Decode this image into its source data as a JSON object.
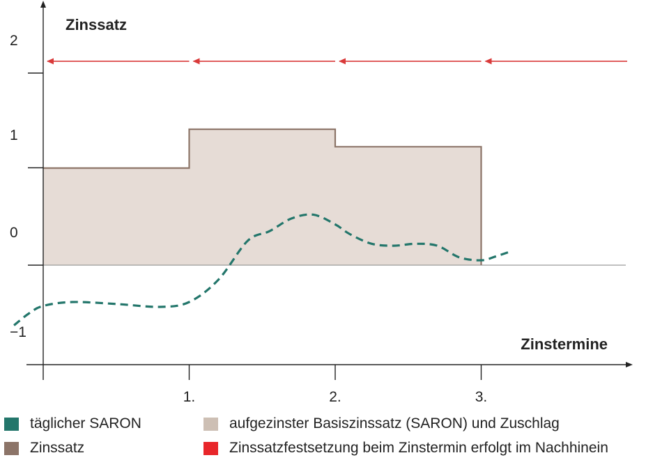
{
  "chart_data": {
    "type": "line",
    "title": "Zinssatz",
    "xlabel": "Zinstermine",
    "ylabel": "Zinssatz",
    "y_ticks": [
      "2",
      "1",
      "0",
      "−1"
    ],
    "y_tick_values": [
      2,
      1,
      0,
      -1
    ],
    "ylim": [
      -1.03,
      2.55
    ],
    "x_ticks": [
      "1.",
      "2.",
      "3."
    ],
    "x_tick_values": [
      1,
      2,
      3
    ],
    "xlim": [
      -0.3,
      4.0
    ],
    "grid": false,
    "legend_position": "bottom",
    "colors": {
      "saron": "#23766b",
      "zinssatz": "#8c7468",
      "area": "#e6dcd6",
      "arrows": "#d93a3a",
      "axis": "#222222"
    },
    "series": [
      {
        "name": "Zinssatz",
        "kind": "step",
        "segments": [
          {
            "x0": 0,
            "x1": 1,
            "y": 1.0
          },
          {
            "x0": 1,
            "x1": 2,
            "y": 1.4
          },
          {
            "x0": 2,
            "x1": 3,
            "y": 1.22
          }
        ]
      },
      {
        "name": "aufgezinster Basiszinssatz (SARON) und Zuschlag",
        "kind": "area",
        "baseline": 0
      },
      {
        "name": "täglicher SARON",
        "kind": "dashed-line",
        "x": [
          -0.2,
          -0.1,
          0.0,
          0.2,
          0.5,
          0.8,
          1.0,
          1.2,
          1.4,
          1.55,
          1.7,
          1.85,
          2.0,
          2.1,
          2.25,
          2.4,
          2.55,
          2.7,
          2.85,
          3.0,
          3.1,
          3.2
        ],
        "y": [
          -0.62,
          -0.5,
          -0.42,
          -0.38,
          -0.4,
          -0.43,
          -0.38,
          -0.15,
          0.25,
          0.35,
          0.48,
          0.52,
          0.42,
          0.32,
          0.22,
          0.2,
          0.22,
          0.2,
          0.08,
          0.05,
          0.09,
          0.14
        ]
      },
      {
        "name": "Zinssatzfestsetzung beim Zinstermin erfolgt im Nachhinein",
        "kind": "arrows",
        "y": 2.1,
        "arrows": [
          {
            "from": 1.0,
            "to": 0.0
          },
          {
            "from": 2.0,
            "to": 1.0
          },
          {
            "from": 3.0,
            "to": 2.0
          },
          {
            "from": 4.0,
            "to": 3.0
          }
        ]
      }
    ]
  },
  "legend": {
    "items": [
      {
        "label": "täglicher SARON",
        "color": "#23766b"
      },
      {
        "label": "aufgezinster Basiszinssatz (SARON) und Zuschlag",
        "color": "#cdbfb4"
      },
      {
        "label": "Zinssatz",
        "color": "#8c7468"
      },
      {
        "label": "Zinssatzfestsetzung beim Zinstermin erfolgt im Nachhinein",
        "color": "#e8262a"
      }
    ]
  }
}
